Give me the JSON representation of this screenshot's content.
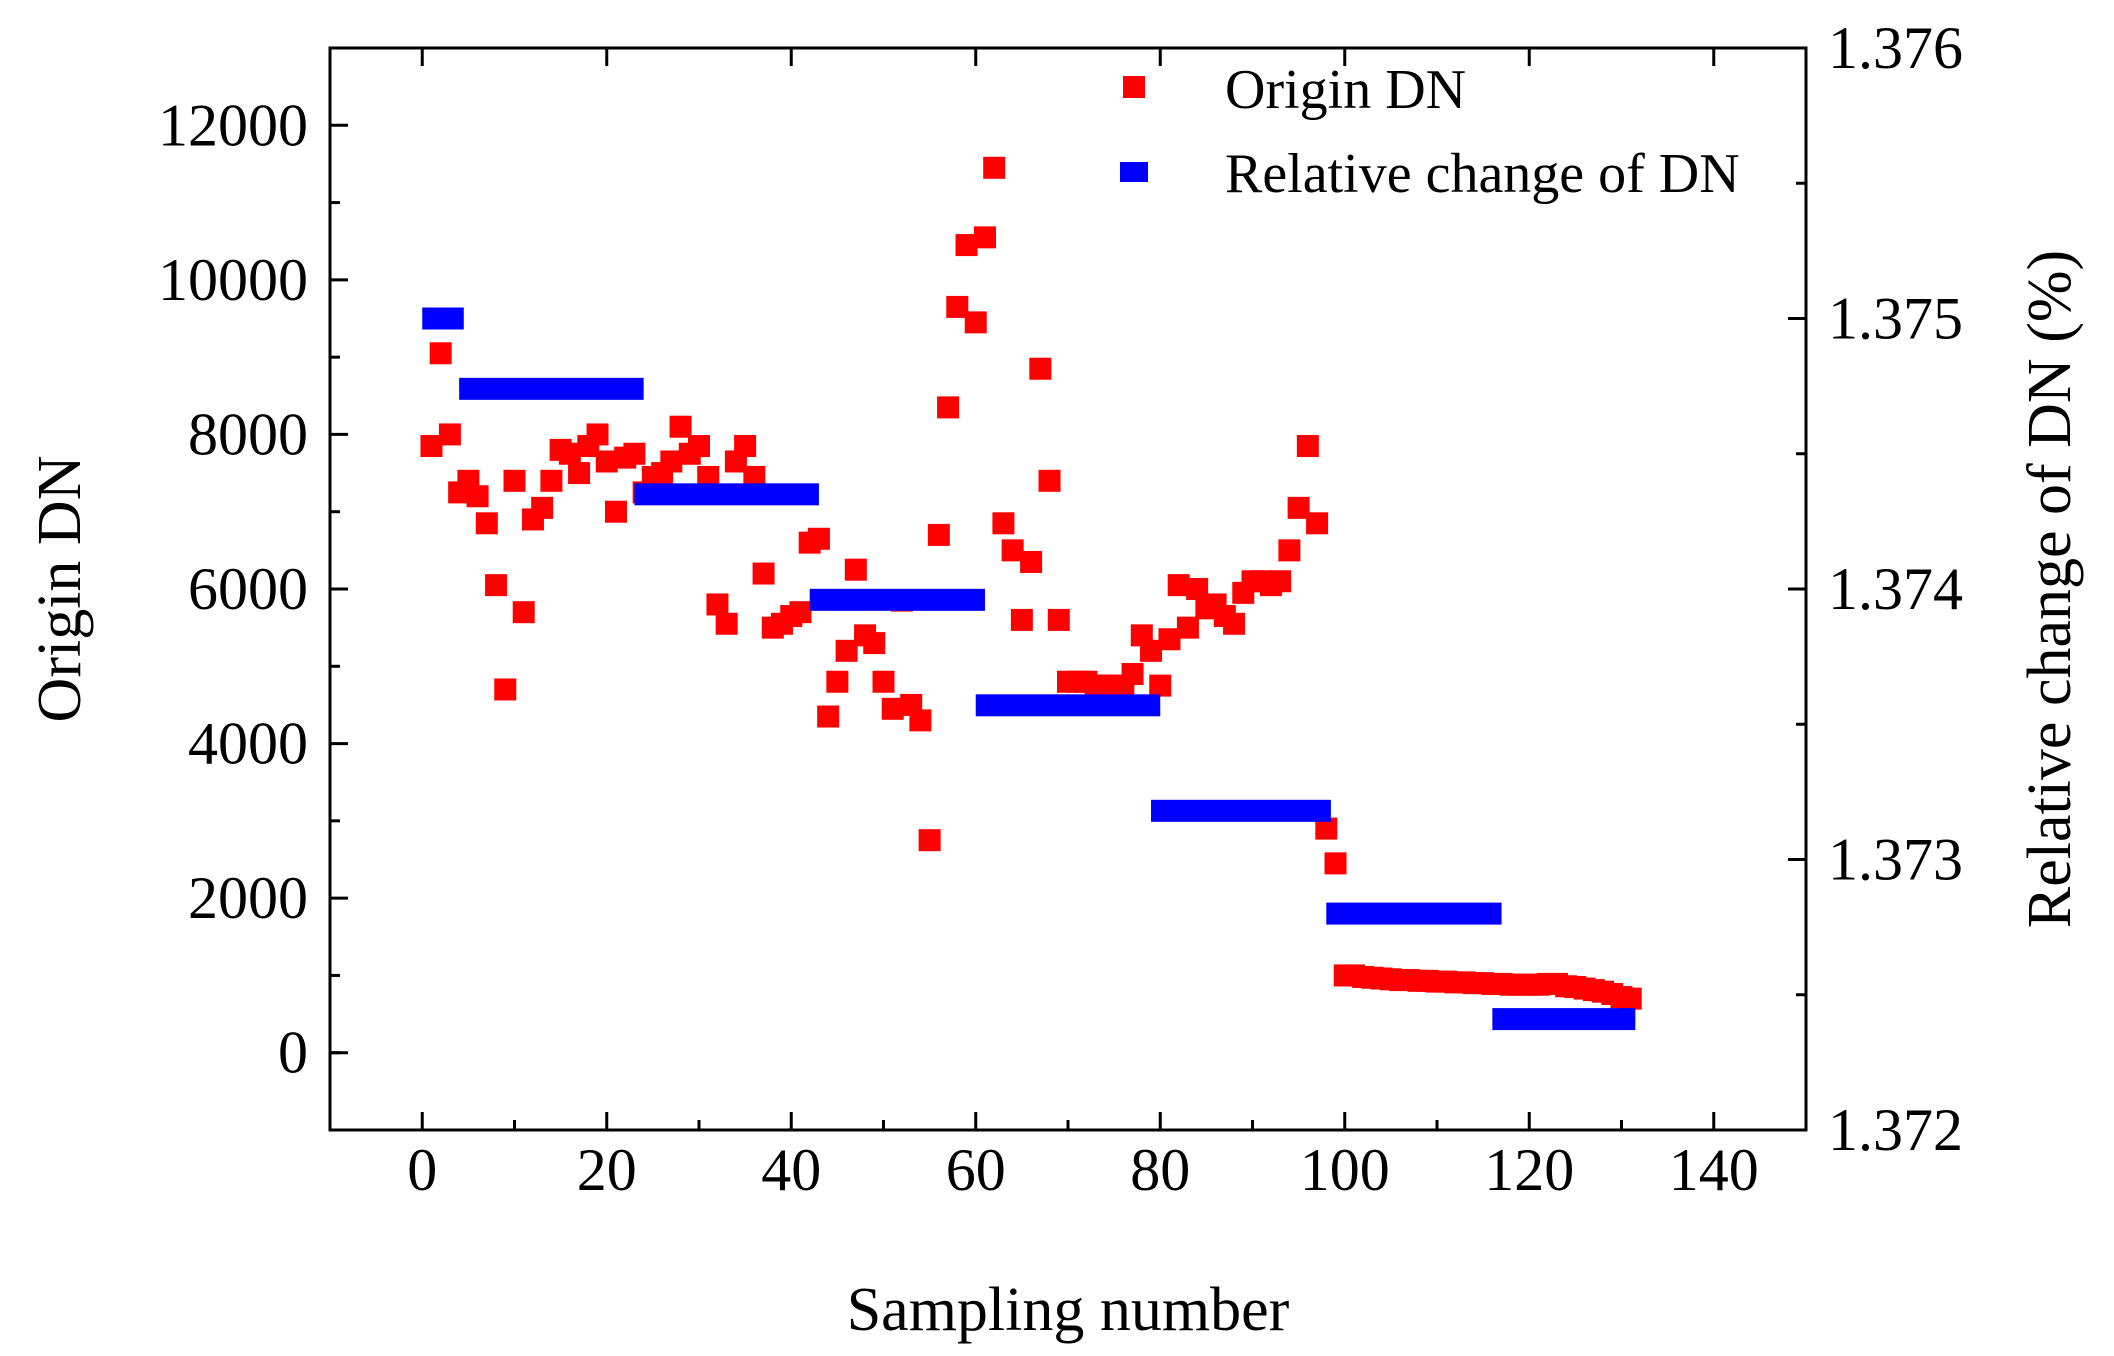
{
  "chart_data": {
    "type": "scatter",
    "xlabel": "Sampling number",
    "ylabel": "Origin DN",
    "y2label": "Relative change of DN (%)",
    "xlim": [
      -10,
      150
    ],
    "ylim": [
      -1000,
      13000
    ],
    "y2lim": [
      1.372,
      1.376
    ],
    "x_ticks": [
      0,
      20,
      40,
      60,
      80,
      100,
      120,
      140
    ],
    "x_tick_labels": [
      "0",
      "20",
      "40",
      "60",
      "80",
      "100",
      "120",
      "140"
    ],
    "y_ticks": [
      0,
      2000,
      4000,
      6000,
      8000,
      10000,
      12000
    ],
    "y_tick_labels": [
      "0",
      "2000",
      "4000",
      "6000",
      "8000",
      "10000",
      "12000"
    ],
    "y2_ticks": [
      1.372,
      1.373,
      1.374,
      1.375,
      1.376
    ],
    "y2_tick_labels": [
      "1.372",
      "1.373",
      "1.374",
      "1.375",
      "1.376"
    ],
    "legend_position": "top-right",
    "series": [
      {
        "name": "Origin DN",
        "color": "#ff0000",
        "axis": "left",
        "points": [
          [
            1,
            7850
          ],
          [
            2,
            9050
          ],
          [
            3,
            8000
          ],
          [
            4,
            7250
          ],
          [
            5,
            7400
          ],
          [
            6,
            7200
          ],
          [
            7,
            6850
          ],
          [
            8,
            6050
          ],
          [
            9,
            4700
          ],
          [
            10,
            7400
          ],
          [
            11,
            5700
          ],
          [
            12,
            6900
          ],
          [
            13,
            7050
          ],
          [
            14,
            7400
          ],
          [
            15,
            7800
          ],
          [
            16,
            7750
          ],
          [
            17,
            7500
          ],
          [
            18,
            7850
          ],
          [
            19,
            8000
          ],
          [
            20,
            7650
          ],
          [
            21,
            7000
          ],
          [
            22,
            7700
          ],
          [
            23,
            7750
          ],
          [
            24,
            7250
          ],
          [
            25,
            7450
          ],
          [
            26,
            7500
          ],
          [
            27,
            7650
          ],
          [
            28,
            8100
          ],
          [
            29,
            7750
          ],
          [
            30,
            7850
          ],
          [
            31,
            7450
          ],
          [
            32,
            5800
          ],
          [
            33,
            5550
          ],
          [
            34,
            7650
          ],
          [
            35,
            7850
          ],
          [
            36,
            7450
          ],
          [
            37,
            6200
          ],
          [
            38,
            5500
          ],
          [
            39,
            5550
          ],
          [
            40,
            5650
          ],
          [
            41,
            5700
          ],
          [
            42,
            6600
          ],
          [
            43,
            6650
          ],
          [
            44,
            4350
          ],
          [
            45,
            4800
          ],
          [
            46,
            5200
          ],
          [
            47,
            6250
          ],
          [
            48,
            5400
          ],
          [
            49,
            5300
          ],
          [
            50,
            4800
          ],
          [
            51,
            4450
          ],
          [
            52,
            5850
          ],
          [
            53,
            4500
          ],
          [
            54,
            4300
          ],
          [
            55,
            2750
          ],
          [
            56,
            6700
          ],
          [
            57,
            8350
          ],
          [
            58,
            9650
          ],
          [
            59,
            10450
          ],
          [
            60,
            9450
          ],
          [
            61,
            10550
          ],
          [
            62,
            11450
          ],
          [
            63,
            6850
          ],
          [
            64,
            6500
          ],
          [
            65,
            5600
          ],
          [
            66,
            6350
          ],
          [
            67,
            8850
          ],
          [
            68,
            7400
          ],
          [
            69,
            5600
          ],
          [
            70,
            4800
          ],
          [
            71,
            4800
          ],
          [
            72,
            4800
          ],
          [
            73,
            4750
          ],
          [
            74,
            4750
          ],
          [
            75,
            4750
          ],
          [
            76,
            4700
          ],
          [
            77,
            4900
          ],
          [
            78,
            5400
          ],
          [
            79,
            5200
          ],
          [
            80,
            4750
          ],
          [
            81,
            5350
          ],
          [
            82,
            6050
          ],
          [
            83,
            5500
          ],
          [
            84,
            6000
          ],
          [
            85,
            5750
          ],
          [
            86,
            5800
          ],
          [
            87,
            5650
          ],
          [
            88,
            5550
          ],
          [
            89,
            5950
          ],
          [
            90,
            6100
          ],
          [
            91,
            6100
          ],
          [
            92,
            6050
          ],
          [
            93,
            6100
          ],
          [
            94,
            6500
          ],
          [
            95,
            7050
          ],
          [
            96,
            7850
          ],
          [
            97,
            6850
          ],
          [
            98,
            2900
          ],
          [
            99,
            2450
          ],
          [
            100,
            1000
          ],
          [
            101,
            1000
          ],
          [
            102,
            980
          ],
          [
            103,
            970
          ],
          [
            104,
            960
          ],
          [
            105,
            950
          ],
          [
            106,
            940
          ],
          [
            107,
            940
          ],
          [
            108,
            930
          ],
          [
            109,
            930
          ],
          [
            110,
            920
          ],
          [
            111,
            920
          ],
          [
            112,
            910
          ],
          [
            113,
            910
          ],
          [
            114,
            900
          ],
          [
            115,
            900
          ],
          [
            116,
            890
          ],
          [
            117,
            890
          ],
          [
            118,
            880
          ],
          [
            119,
            880
          ],
          [
            120,
            880
          ],
          [
            121,
            880
          ],
          [
            122,
            890
          ],
          [
            123,
            890
          ],
          [
            124,
            860
          ],
          [
            125,
            850
          ],
          [
            126,
            830
          ],
          [
            127,
            810
          ],
          [
            128,
            790
          ],
          [
            129,
            760
          ],
          [
            130,
            720
          ],
          [
            131,
            700
          ]
        ]
      },
      {
        "name": "Relative change of DN",
        "color": "#0000ff",
        "axis": "right",
        "segments": [
          [
            0,
            4.5,
            1.375
          ],
          [
            4,
            24,
            1.37474
          ],
          [
            23,
            43,
            1.37435
          ],
          [
            42,
            61,
            1.37396
          ],
          [
            60,
            80,
            1.37357
          ],
          [
            79,
            98.5,
            1.37318
          ],
          [
            98,
            117,
            1.3728
          ],
          [
            116,
            131.5,
            1.37241
          ]
        ]
      }
    ]
  }
}
